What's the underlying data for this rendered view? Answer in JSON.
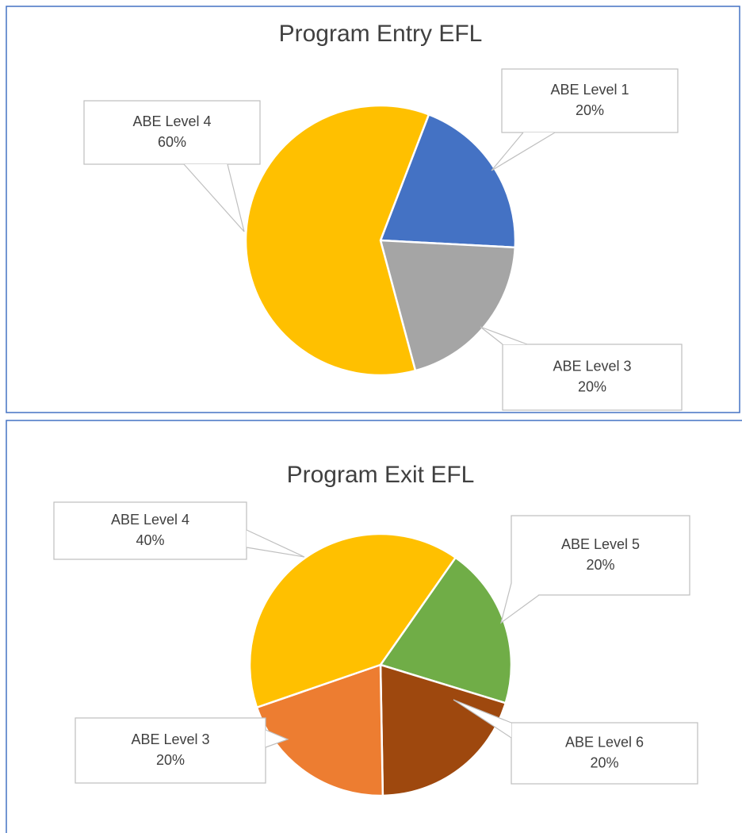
{
  "chart_data": [
    {
      "type": "pie",
      "title": "Program Entry EFL",
      "categories": [
        "ABE Level 1",
        "ABE Level 3",
        "ABE Level 4"
      ],
      "values": [
        20,
        20,
        60
      ],
      "value_labels": [
        "20%",
        "20%",
        "60%"
      ],
      "colors": [
        "#4472c4",
        "#a5a5a5",
        "#ffc000"
      ]
    },
    {
      "type": "pie",
      "title": "Program Exit EFL",
      "categories": [
        "ABE Level 5",
        "ABE Level 6",
        "ABE Level 3",
        "ABE Level 4"
      ],
      "values": [
        20,
        20,
        20,
        40
      ],
      "value_labels": [
        "20%",
        "20%",
        "20%",
        "40%"
      ],
      "colors": [
        "#70ad47",
        "#9e480e",
        "#ed7d31",
        "#ffc000"
      ]
    }
  ]
}
